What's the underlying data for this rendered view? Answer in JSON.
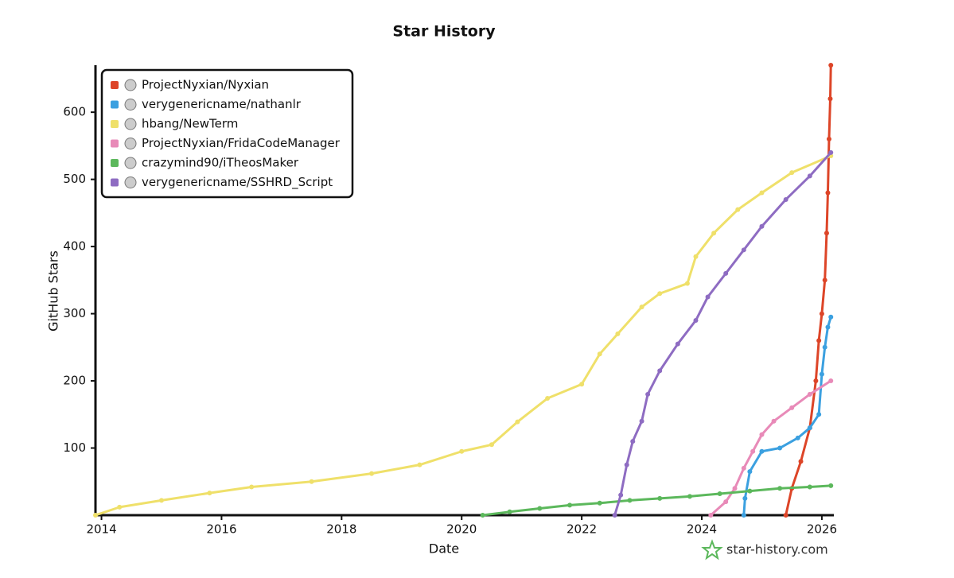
{
  "chart_data": {
    "type": "line",
    "title": "Star History",
    "x_label": "Date",
    "y_label": "GitHub Stars",
    "watermark": "star-history.com",
    "xlim": [
      2013.9,
      2026.2
    ],
    "xticks": [
      2014,
      2016,
      2018,
      2020,
      2022,
      2024,
      2026
    ],
    "ylim": [
      0,
      670
    ],
    "yticks": [
      100,
      200,
      300,
      400,
      500,
      600
    ],
    "legend": "top-left",
    "grid": false,
    "series": [
      {
        "name": "ProjectNyxian/Nyxian",
        "color": "#dd4528",
        "x": [
          2025.4,
          2025.5,
          2025.65,
          2025.8,
          2025.9,
          2025.95,
          2026.0,
          2026.05,
          2026.08,
          2026.1,
          2026.12,
          2026.14,
          2026.15
        ],
        "values": [
          0,
          40,
          80,
          130,
          200,
          260,
          300,
          350,
          420,
          480,
          560,
          620,
          670
        ]
      },
      {
        "name": "verygenericname/nathanlr",
        "color": "#3ba0e0",
        "x": [
          2024.7,
          2024.72,
          2024.8,
          2025.0,
          2025.3,
          2025.6,
          2025.8,
          2025.95,
          2026.0,
          2026.05,
          2026.1,
          2026.15
        ],
        "values": [
          0,
          25,
          65,
          95,
          100,
          115,
          130,
          150,
          210,
          250,
          280,
          295
        ]
      },
      {
        "name": "hbang/NewTerm",
        "color": "#efe06a",
        "x": [
          2013.9,
          2014.3,
          2015.0,
          2015.8,
          2016.5,
          2017.5,
          2018.5,
          2019.3,
          2020.0,
          2020.5,
          2020.93,
          2021.43,
          2022.0,
          2022.3,
          2022.6,
          2023.0,
          2023.3,
          2023.76,
          2023.9,
          2024.2,
          2024.6,
          2025.0,
          2025.5,
          2026.15
        ],
        "values": [
          0,
          12,
          22,
          33,
          42,
          50,
          62,
          75,
          95,
          105,
          139,
          174,
          195,
          240,
          270,
          310,
          330,
          345,
          385,
          420,
          455,
          480,
          510,
          535
        ]
      },
      {
        "name": "ProjectNyxian/FridaCodeManager",
        "color": "#e88ab8",
        "x": [
          2024.15,
          2024.4,
          2024.55,
          2024.7,
          2024.85,
          2025.0,
          2025.2,
          2025.5,
          2025.8,
          2026.15
        ],
        "values": [
          0,
          20,
          40,
          70,
          95,
          120,
          140,
          160,
          180,
          200
        ]
      },
      {
        "name": "crazymind90/iTheosMaker",
        "color": "#5cb85c",
        "x": [
          2020.35,
          2020.8,
          2021.3,
          2021.8,
          2022.3,
          2022.8,
          2023.3,
          2023.8,
          2024.3,
          2024.8,
          2025.3,
          2025.8,
          2026.15
        ],
        "values": [
          0,
          5,
          10,
          15,
          18,
          22,
          25,
          28,
          32,
          36,
          40,
          42,
          44
        ]
      },
      {
        "name": "verygenericname/SSHRD_Script",
        "color": "#8e6cc2",
        "x": [
          2022.55,
          2022.65,
          2022.75,
          2022.85,
          2023.0,
          2023.1,
          2023.3,
          2023.6,
          2023.9,
          2024.1,
          2024.4,
          2024.7,
          2025.0,
          2025.4,
          2025.8,
          2026.15
        ],
        "values": [
          0,
          30,
          75,
          110,
          140,
          180,
          215,
          255,
          290,
          325,
          360,
          395,
          430,
          470,
          505,
          540
        ]
      }
    ]
  }
}
